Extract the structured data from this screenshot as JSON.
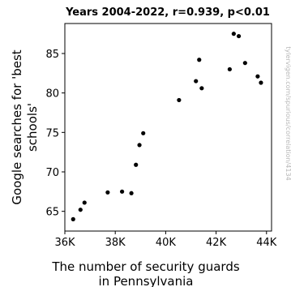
{
  "chart_data": {
    "type": "scatter",
    "title": "Years 2004-2022, r=0.939, p<0.01",
    "xlabel": [
      "The number of security guards",
      "in Pennsylvania"
    ],
    "ylabel": [
      "Google searches for 'best",
      "schools'"
    ],
    "watermark": "tylervigen.com/spurious/correlation/4134",
    "xlim": [
      36000,
      44200
    ],
    "ylim": [
      62.5,
      88.8
    ],
    "xticks": [
      36000,
      38000,
      40000,
      42000,
      44000
    ],
    "xtick_labels": [
      "36K",
      "38K",
      "40K",
      "42K",
      "44K"
    ],
    "yticks": [
      65,
      70,
      75,
      80,
      85
    ],
    "ytick_labels": [
      "65",
      "70",
      "75",
      "80",
      "85"
    ],
    "grid": false,
    "legend": "none",
    "point_color": "#000000",
    "points": [
      {
        "x": 36330,
        "y": 64.0
      },
      {
        "x": 36620,
        "y": 65.2
      },
      {
        "x": 36780,
        "y": 66.1
      },
      {
        "x": 37700,
        "y": 67.4
      },
      {
        "x": 38270,
        "y": 67.5
      },
      {
        "x": 38640,
        "y": 67.3
      },
      {
        "x": 38820,
        "y": 70.9
      },
      {
        "x": 38960,
        "y": 73.4
      },
      {
        "x": 39110,
        "y": 74.9
      },
      {
        "x": 40530,
        "y": 79.1
      },
      {
        "x": 41200,
        "y": 81.5
      },
      {
        "x": 41330,
        "y": 84.2
      },
      {
        "x": 41430,
        "y": 80.6
      },
      {
        "x": 42540,
        "y": 83.0
      },
      {
        "x": 42700,
        "y": 87.5
      },
      {
        "x": 42900,
        "y": 87.2
      },
      {
        "x": 43150,
        "y": 83.8
      },
      {
        "x": 43650,
        "y": 82.1
      },
      {
        "x": 43780,
        "y": 81.3
      }
    ]
  }
}
